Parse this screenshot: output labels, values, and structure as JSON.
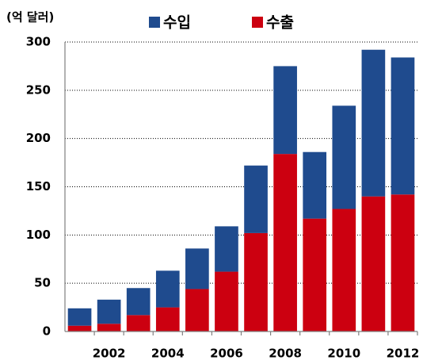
{
  "chart_data": {
    "type": "stacked_bar",
    "unit_label": "(억 달러)",
    "categories": [
      null,
      "2002",
      null,
      "2004",
      null,
      "2006",
      null,
      "2008",
      null,
      "2010",
      null,
      "2012"
    ],
    "series": [
      {
        "name": "수출",
        "color": "#cc0010",
        "values": [
          6,
          8,
          17,
          25,
          44,
          62,
          102,
          184,
          117,
          127,
          140,
          142
        ]
      },
      {
        "name": "수입",
        "color": "#1f4b8e",
        "values": [
          18,
          25,
          28,
          38,
          42,
          47,
          70,
          91,
          69,
          107,
          152,
          142
        ]
      }
    ],
    "ylim": [
      0,
      300
    ],
    "yticks": [
      0,
      50,
      100,
      150,
      200,
      250,
      300
    ],
    "grid": true
  }
}
